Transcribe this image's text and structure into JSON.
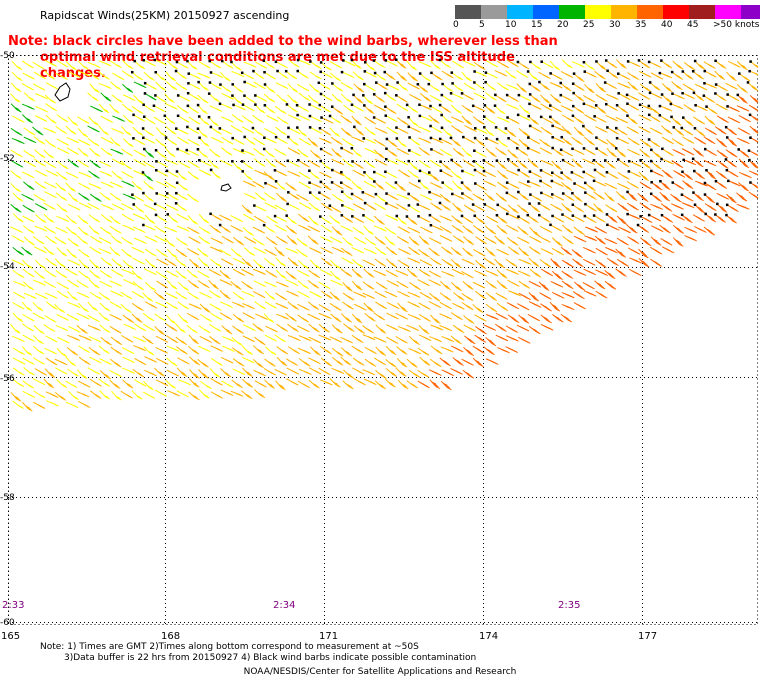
{
  "header": {
    "title": "Rapidscat Winds(25KM) 20150927 ascending",
    "note_line1": "Note: black circles have been added to the wind barbs, wherever less than",
    "note_line2": "optimal wind retrieval conditions are met due to the ISS altitude changes."
  },
  "legend": {
    "labels": [
      "0",
      "5",
      "10",
      "15",
      "20",
      "25",
      "30",
      "35",
      "40",
      "45",
      ">50 knots"
    ],
    "colors": [
      "#555555",
      "#9a9a9a",
      "#00b4ff",
      "#0064ff",
      "#00b400",
      "#ffff00",
      "#ffb400",
      "#ff6400",
      "#ff0000",
      "#a01e1e",
      "#ff00ff",
      "#8c00c8"
    ]
  },
  "map": {
    "lat_labels": [
      "-50",
      "-52",
      "-54",
      "-56",
      "-58",
      "-60"
    ],
    "lon_labels": [
      "165",
      "168",
      "171",
      "174",
      "177"
    ],
    "time_labels": [
      "2:33",
      "2:34",
      "2:35"
    ]
  },
  "footer": {
    "note1": "Note: 1) Times are GMT 2)Times along bottom correspond to measurement at ~50S",
    "note2": "3)Data buffer is 22 hrs from 20150927 4) Black wind barbs indicate possible contamination",
    "credit": "NOAA/NESDIS/Center for Satellite Applications and Research"
  }
}
